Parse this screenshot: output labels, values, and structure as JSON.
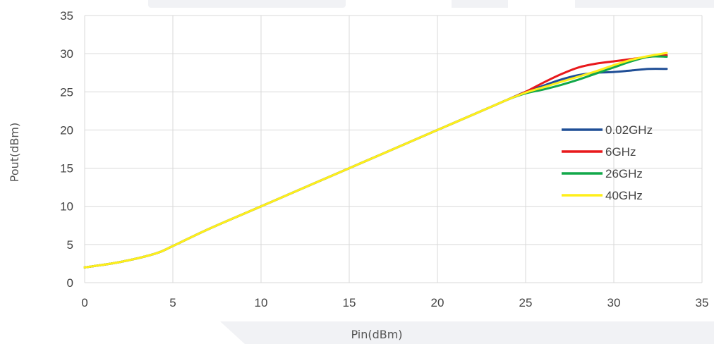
{
  "chart_data": {
    "type": "line",
    "title": "",
    "xlabel": "Pin(dBm)",
    "ylabel": "Pout(dBm)",
    "xlim": [
      0,
      35
    ],
    "ylim": [
      0,
      35
    ],
    "xticks": [
      0,
      5,
      10,
      15,
      20,
      25,
      30,
      35
    ],
    "yticks": [
      0,
      5,
      10,
      15,
      20,
      25,
      30,
      35
    ],
    "grid": true,
    "legend_position": "right",
    "series": [
      {
        "name": "0.02GHz",
        "color": "#1f4e96",
        "x": [
          0,
          2,
          4,
          5,
          7,
          10,
          15,
          20,
          23,
          24,
          25,
          26,
          27,
          28,
          29,
          30,
          31,
          32,
          33
        ],
        "y": [
          2,
          2.7,
          3.8,
          4.8,
          7,
          10,
          15,
          20,
          23,
          24,
          25,
          25.8,
          26.6,
          27.2,
          27.5,
          27.6,
          27.8,
          28,
          28
        ]
      },
      {
        "name": "6GHz",
        "color": "#e8191c",
        "x": [
          0,
          2,
          4,
          5,
          7,
          10,
          15,
          20,
          23,
          24,
          25,
          26,
          27,
          28,
          29,
          30,
          31,
          32,
          33
        ],
        "y": [
          2,
          2.7,
          3.8,
          4.8,
          7,
          10,
          15,
          20,
          23,
          24,
          25,
          26.2,
          27.3,
          28.2,
          28.7,
          29,
          29.3,
          29.6,
          29.8
        ]
      },
      {
        "name": "26GHz",
        "color": "#12a84a",
        "x": [
          0,
          2,
          4,
          5,
          7,
          10,
          15,
          20,
          23,
          24,
          25,
          26,
          27,
          28,
          29,
          30,
          31,
          32,
          33
        ],
        "y": [
          2,
          2.7,
          3.8,
          4.8,
          7,
          10,
          15,
          20,
          23,
          24,
          24.8,
          25.3,
          25.9,
          26.6,
          27.4,
          28.2,
          29,
          29.6,
          29.6
        ]
      },
      {
        "name": "40GHz",
        "color": "#ffef1a",
        "x": [
          0,
          2,
          4,
          5,
          7,
          10,
          15,
          20,
          23,
          24,
          25,
          26,
          27,
          28,
          29,
          30,
          31,
          32,
          33
        ],
        "y": [
          2,
          2.7,
          3.8,
          4.8,
          7,
          10,
          15,
          20,
          23,
          24,
          24.9,
          25.6,
          26.3,
          27,
          27.7,
          28.5,
          29.2,
          29.7,
          30.1
        ]
      }
    ]
  }
}
